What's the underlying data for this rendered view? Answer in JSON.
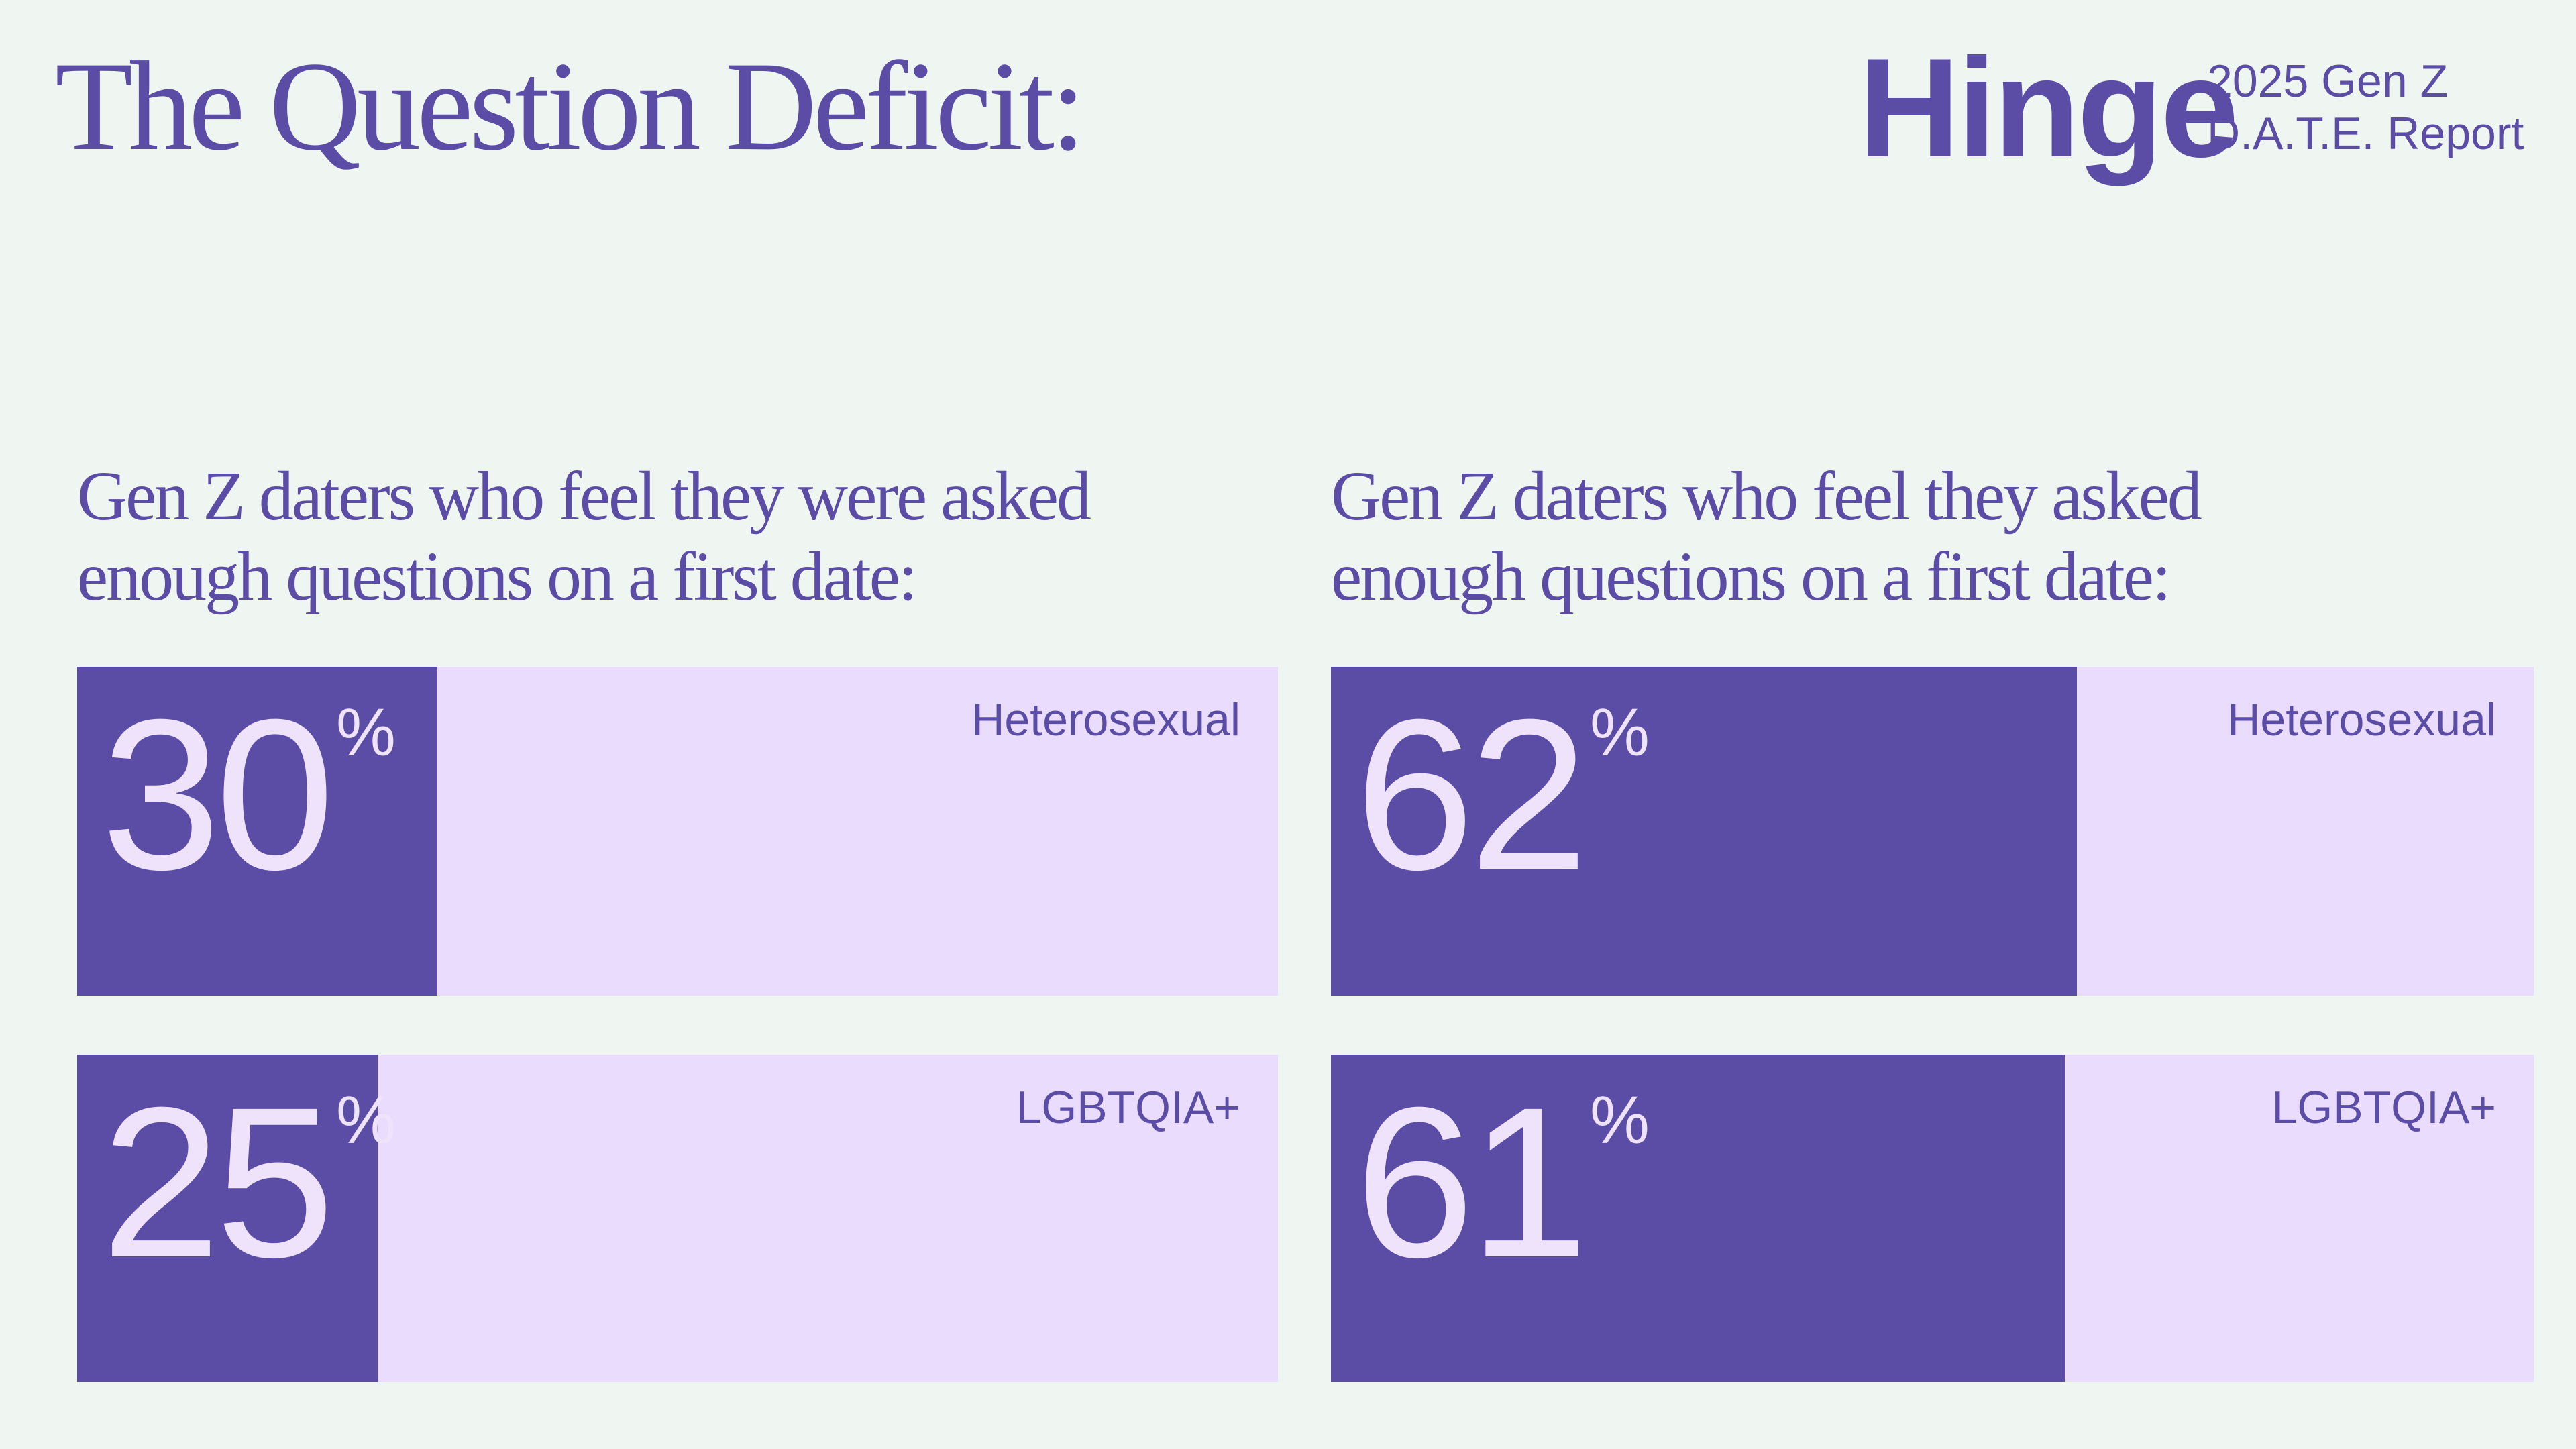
{
  "header": {
    "title": "The Question Deficit:",
    "logo": "Hinge",
    "report": [
      "2025 Gen Z",
      "D.A.T.E. Report"
    ]
  },
  "chart_data": [
    {
      "type": "bar",
      "orientation": "horizontal",
      "title": [
        "Gen Z daters who feel they were asked",
        "enough questions on a first date:"
      ],
      "categories": [
        "Heterosexual",
        "LGBTQIA+"
      ],
      "values": [
        30,
        25
      ],
      "unit": "%",
      "xlim": [
        0,
        100
      ],
      "color": "#5b4ca6",
      "track_color": "#e9dcfd"
    },
    {
      "type": "bar",
      "orientation": "horizontal",
      "title": [
        "Gen Z daters who feel they asked",
        "enough questions on a first date:"
      ],
      "categories": [
        "Heterosexual",
        "LGBTQIA+"
      ],
      "values": [
        62,
        61
      ],
      "unit": "%",
      "xlim": [
        0,
        100
      ],
      "color": "#5b4ca6",
      "track_color": "#e9dcfd"
    }
  ]
}
